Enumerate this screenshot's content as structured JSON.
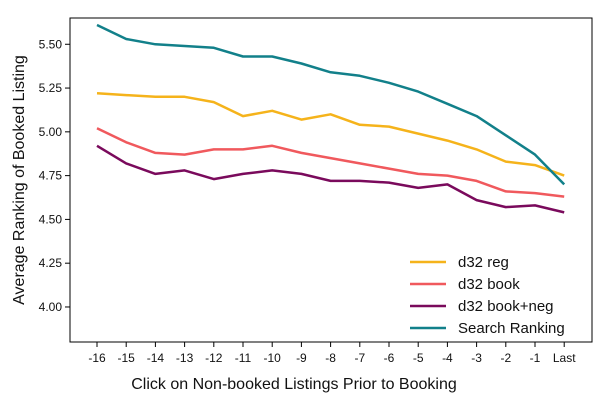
{
  "chart_data": {
    "type": "line",
    "title": "",
    "xlabel": "Click on Non-booked Listings Prior to Booking",
    "ylabel": "Average Ranking of Booked Listing",
    "categories": [
      "-16",
      "-15",
      "-14",
      "-13",
      "-12",
      "-11",
      "-10",
      "-9",
      "-8",
      "-7",
      "-6",
      "-5",
      "-4",
      "-3",
      "-2",
      "-1",
      "Last"
    ],
    "yticks": [
      "4.00",
      "4.25",
      "4.50",
      "4.75",
      "5.00",
      "5.25",
      "5.50"
    ],
    "ylim": [
      3.8,
      5.65
    ],
    "grid": false,
    "legend_position": "lower-right",
    "series": [
      {
        "name": "d32 reg",
        "color": "#F5B31B",
        "values": [
          5.22,
          5.21,
          5.2,
          5.2,
          5.17,
          5.09,
          5.12,
          5.07,
          5.1,
          5.04,
          5.03,
          4.99,
          4.95,
          4.9,
          4.83,
          4.81,
          4.75
        ]
      },
      {
        "name": "d32 book",
        "color": "#F0595D",
        "values": [
          5.02,
          4.94,
          4.88,
          4.87,
          4.9,
          4.9,
          4.92,
          4.88,
          4.85,
          4.82,
          4.79,
          4.76,
          4.75,
          4.72,
          4.66,
          4.65,
          4.63
        ]
      },
      {
        "name": "d32 book+neg",
        "color": "#7A0A5C",
        "values": [
          4.92,
          4.82,
          4.76,
          4.78,
          4.73,
          4.76,
          4.78,
          4.76,
          4.72,
          4.72,
          4.71,
          4.68,
          4.7,
          4.61,
          4.57,
          4.58,
          4.54
        ]
      },
      {
        "name": "Search Ranking",
        "color": "#12808A",
        "values": [
          5.61,
          5.53,
          5.5,
          5.49,
          5.48,
          5.43,
          5.43,
          5.39,
          5.34,
          5.32,
          5.28,
          5.23,
          5.16,
          5.09,
          4.98,
          4.87,
          4.7
        ]
      }
    ]
  }
}
